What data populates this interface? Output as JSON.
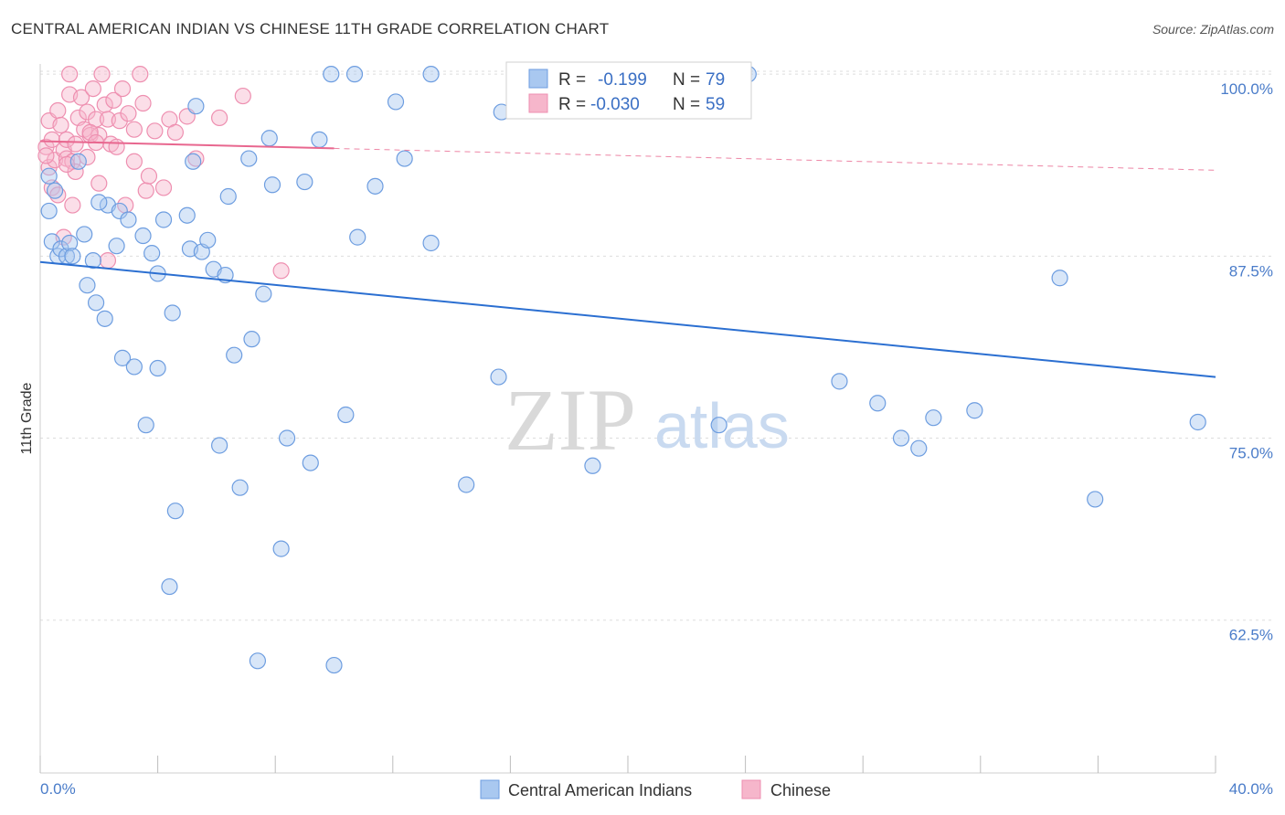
{
  "title": "CENTRAL AMERICAN INDIAN VS CHINESE 11TH GRADE CORRELATION CHART",
  "source": "Source: ZipAtlas.com",
  "watermark": {
    "zip": "ZIP",
    "atlas": "atlas"
  },
  "colors": {
    "blue_fill": "#a9c8f0",
    "blue_stroke": "#6d9de0",
    "blue_line": "#2b6fd1",
    "pink_fill": "#f6b6cb",
    "pink_stroke": "#ee8fb0",
    "pink_line": "#e8678f",
    "grid": "#dddddd",
    "tick_text": "#4a7cc9"
  },
  "stats": {
    "blue": {
      "r_label": "R =",
      "r_value": "-0.199",
      "n_label": "N =",
      "n_value": "79"
    },
    "pink": {
      "r_label": "R =",
      "r_value": "-0.030",
      "n_label": "N =",
      "n_value": "59"
    }
  },
  "chart_data": {
    "type": "scatter",
    "title": "CENTRAL AMERICAN INDIAN VS CHINESE 11TH GRADE CORRELATION CHART",
    "xlabel": "",
    "ylabel": "11th Grade",
    "xlim": [
      0,
      40
    ],
    "ylim": [
      52,
      100.7
    ],
    "x_tick_labels": [
      "0.0%",
      "40.0%"
    ],
    "y_ticks": [
      62.5,
      75.0,
      87.5,
      100.0
    ],
    "y_tick_labels": [
      "62.5%",
      "75.0%",
      "87.5%",
      "100.0%"
    ],
    "grid": true,
    "legend_position": "bottom-center",
    "series": [
      {
        "name": "Central American Indians",
        "color": "#a9c8f0",
        "trend": {
          "x": [
            0,
            40
          ],
          "y": [
            87.1,
            79.2
          ]
        },
        "points": [
          [
            0.3,
            90.6
          ],
          [
            0.4,
            88.5
          ],
          [
            0.6,
            87.5
          ],
          [
            0.7,
            88.0
          ],
          [
            0.9,
            87.5
          ],
          [
            1.0,
            88.4
          ],
          [
            1.1,
            87.5
          ],
          [
            1.5,
            89.0
          ],
          [
            1.8,
            87.2
          ],
          [
            1.6,
            85.5
          ],
          [
            1.9,
            84.3
          ],
          [
            2.2,
            83.2
          ],
          [
            2.3,
            91.0
          ],
          [
            2.6,
            88.2
          ],
          [
            2.7,
            90.6
          ],
          [
            3.0,
            90.0
          ],
          [
            2.8,
            80.5
          ],
          [
            3.2,
            79.9
          ],
          [
            3.5,
            88.9
          ],
          [
            3.8,
            87.7
          ],
          [
            3.6,
            75.9
          ],
          [
            4.0,
            86.3
          ],
          [
            4.0,
            79.8
          ],
          [
            4.2,
            90.0
          ],
          [
            4.4,
            64.8
          ],
          [
            4.5,
            83.6
          ],
          [
            4.6,
            70.0
          ],
          [
            5.0,
            90.3
          ],
          [
            5.1,
            88.0
          ],
          [
            5.2,
            94.0
          ],
          [
            5.3,
            97.8
          ],
          [
            5.5,
            87.8
          ],
          [
            5.7,
            88.6
          ],
          [
            5.9,
            86.6
          ],
          [
            6.1,
            74.5
          ],
          [
            6.3,
            86.2
          ],
          [
            6.4,
            91.6
          ],
          [
            6.6,
            80.7
          ],
          [
            6.8,
            71.6
          ],
          [
            7.1,
            94.2
          ],
          [
            7.2,
            81.8
          ],
          [
            7.4,
            59.7
          ],
          [
            7.6,
            84.9
          ],
          [
            7.8,
            95.6
          ],
          [
            7.9,
            92.4
          ],
          [
            8.2,
            67.4
          ],
          [
            8.4,
            75.0
          ],
          [
            9.2,
            73.3
          ],
          [
            9.5,
            95.5
          ],
          [
            9.0,
            92.6
          ],
          [
            9.9,
            100.0
          ],
          [
            10.0,
            59.4
          ],
          [
            10.7,
            100.0
          ],
          [
            10.4,
            76.6
          ],
          [
            10.8,
            88.8
          ],
          [
            11.4,
            92.3
          ],
          [
            12.1,
            98.1
          ],
          [
            12.4,
            94.2
          ],
          [
            13.3,
            100.0
          ],
          [
            13.3,
            88.4
          ],
          [
            14.5,
            71.8
          ],
          [
            15.6,
            79.2
          ],
          [
            15.7,
            97.4
          ],
          [
            18.8,
            73.1
          ],
          [
            23.1,
            75.9
          ],
          [
            24.1,
            100.0
          ],
          [
            27.2,
            78.9
          ],
          [
            28.5,
            77.4
          ],
          [
            29.3,
            75.0
          ],
          [
            29.9,
            74.3
          ],
          [
            30.4,
            76.4
          ],
          [
            31.8,
            76.9
          ],
          [
            34.7,
            86.0
          ],
          [
            35.9,
            70.8
          ],
          [
            39.4,
            76.1
          ],
          [
            0.3,
            93.0
          ],
          [
            1.3,
            94.0
          ],
          [
            2.0,
            91.2
          ],
          [
            0.5,
            92.0
          ]
        ]
      },
      {
        "name": "Chinese",
        "color": "#f6b6cb",
        "trend": {
          "x": [
            0,
            10
          ],
          "y": [
            95.4,
            94.9
          ]
        },
        "trend_dashed": {
          "x": [
            10,
            40
          ],
          "y": [
            94.9,
            93.4
          ]
        },
        "points": [
          [
            0.2,
            95.0
          ],
          [
            0.3,
            96.8
          ],
          [
            0.3,
            93.6
          ],
          [
            0.4,
            95.5
          ],
          [
            0.5,
            94.1
          ],
          [
            0.6,
            97.5
          ],
          [
            0.7,
            96.5
          ],
          [
            0.8,
            94.8
          ],
          [
            0.9,
            95.5
          ],
          [
            0.9,
            94.2
          ],
          [
            1.0,
            100.0
          ],
          [
            1.0,
            98.6
          ],
          [
            1.1,
            94.0
          ],
          [
            1.2,
            95.2
          ],
          [
            1.2,
            93.3
          ],
          [
            1.3,
            97.0
          ],
          [
            1.4,
            98.4
          ],
          [
            1.5,
            96.2
          ],
          [
            1.6,
            94.3
          ],
          [
            1.6,
            97.4
          ],
          [
            1.7,
            95.8
          ],
          [
            1.8,
            99.0
          ],
          [
            1.9,
            96.9
          ],
          [
            2.0,
            92.5
          ],
          [
            2.0,
            95.8
          ],
          [
            2.1,
            100.0
          ],
          [
            2.2,
            97.9
          ],
          [
            2.3,
            96.9
          ],
          [
            2.4,
            95.2
          ],
          [
            2.5,
            98.2
          ],
          [
            2.6,
            95.0
          ],
          [
            2.7,
            96.8
          ],
          [
            2.8,
            99.0
          ],
          [
            3.0,
            97.3
          ],
          [
            3.2,
            96.2
          ],
          [
            3.2,
            94.0
          ],
          [
            3.4,
            100.0
          ],
          [
            3.5,
            98.0
          ],
          [
            3.6,
            92.0
          ],
          [
            3.9,
            96.1
          ],
          [
            4.2,
            92.2
          ],
          [
            4.4,
            96.9
          ],
          [
            4.6,
            96.0
          ],
          [
            5.0,
            97.1
          ],
          [
            5.3,
            94.2
          ],
          [
            6.1,
            97.0
          ],
          [
            6.9,
            98.5
          ],
          [
            8.2,
            86.5
          ],
          [
            2.3,
            87.2
          ],
          [
            0.8,
            88.8
          ],
          [
            1.1,
            91.0
          ],
          [
            0.4,
            92.2
          ],
          [
            0.2,
            94.4
          ],
          [
            0.6,
            91.7
          ],
          [
            1.7,
            96.0
          ],
          [
            2.9,
            91.0
          ],
          [
            3.7,
            93.0
          ],
          [
            0.9,
            93.8
          ],
          [
            1.9,
            95.3
          ]
        ]
      }
    ]
  }
}
